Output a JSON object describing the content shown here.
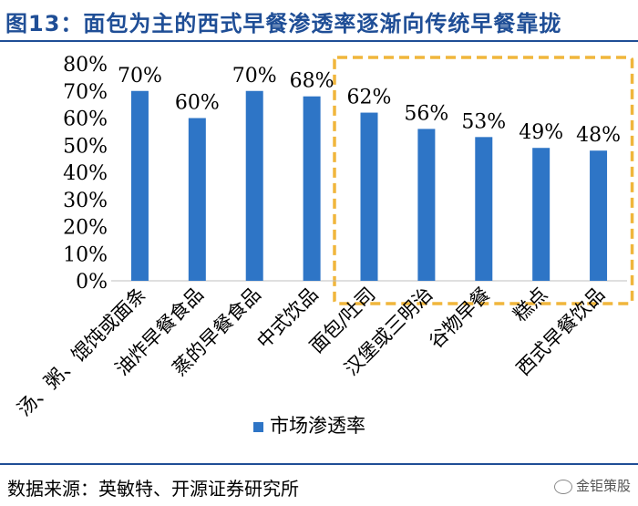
{
  "title": "图13：面包为主的西式早餐渗透率逐渐向传统早餐靠拢",
  "source": "数据来源：英敏特、开源证券研究所",
  "watermark": "金钜策股",
  "colors": {
    "bar": "#2e75c6",
    "highlight_box": "#f0b63c",
    "title": "#1f4e96"
  },
  "chart_data": {
    "type": "bar",
    "categories": [
      "汤、粥、馄饨或面条",
      "油炸早餐食品",
      "蒸的早餐食品",
      "中式饮品",
      "面包/吐司",
      "汉堡或三明治",
      "谷物早餐",
      "糕点",
      "西式早餐饮品"
    ],
    "series": [
      {
        "name": "市场渗透率",
        "values": [
          70,
          60,
          70,
          68,
          62,
          56,
          53,
          49,
          48
        ]
      }
    ],
    "value_labels": [
      "70%",
      "60%",
      "70%",
      "68%",
      "62%",
      "56%",
      "53%",
      "49%",
      "48%"
    ],
    "y_ticks": [
      "0%",
      "10%",
      "20%",
      "30%",
      "40%",
      "50%",
      "60%",
      "70%",
      "80%"
    ],
    "ylim": [
      0,
      80
    ],
    "grid": false,
    "legend_position": "bottom",
    "highlight_categories": [
      "面包/吐司",
      "汉堡或三明治",
      "谷物早餐",
      "糕点",
      "西式早餐饮品"
    ]
  }
}
